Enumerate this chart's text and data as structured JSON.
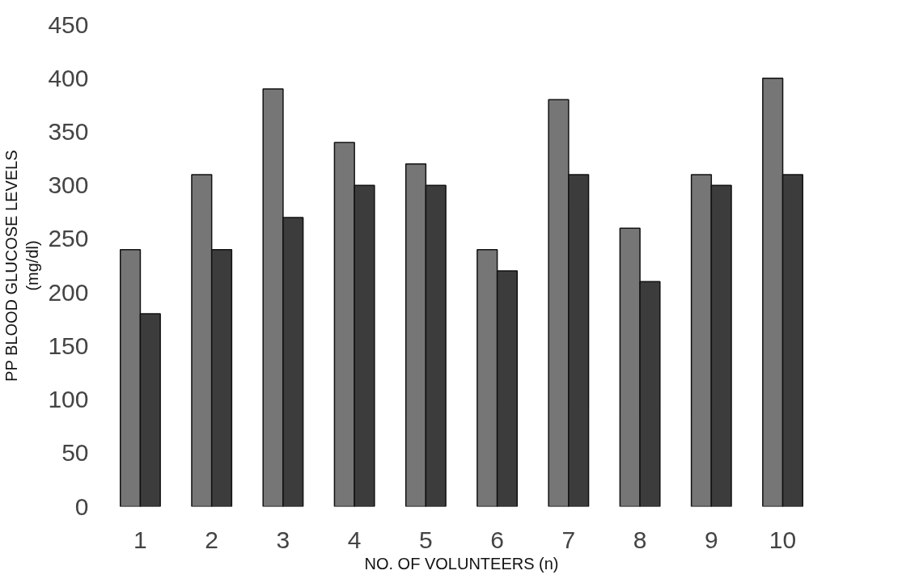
{
  "chart_data": {
    "type": "bar",
    "xlabel": "NO. OF VOLUNTEERS (n)",
    "ylabel": "PP BLOOD GLUCOSE LEVELS\n(mg/dl)",
    "categories": [
      "1",
      "2",
      "3",
      "4",
      "5",
      "6",
      "7",
      "8",
      "9",
      "10"
    ],
    "series": [
      {
        "color": "#767676",
        "values": [
          240,
          310,
          390,
          340,
          320,
          240,
          380,
          260,
          310,
          400
        ]
      },
      {
        "color": "#3c3c3c",
        "values": [
          180,
          240,
          270,
          300,
          300,
          220,
          310,
          210,
          300,
          310
        ]
      }
    ],
    "ylim": [
      0,
      450
    ],
    "yticks": [
      0,
      50,
      100,
      150,
      200,
      250,
      300,
      350,
      400,
      450
    ],
    "grid": false
  }
}
